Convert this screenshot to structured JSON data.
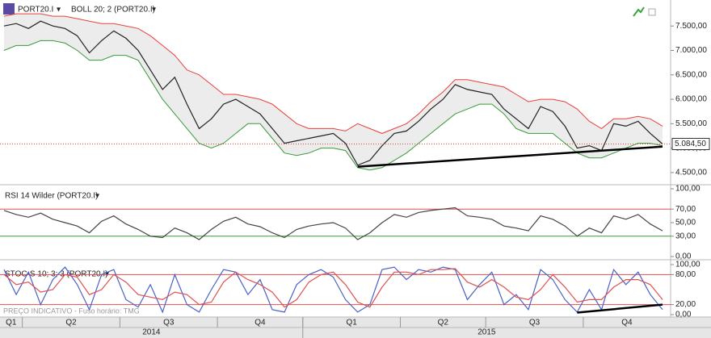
{
  "chart_data": [
    {
      "type": "line",
      "title": "PORT20.I",
      "indicator": "BOLL 20; 2 (PORT20.I)",
      "color": "#222222",
      "values": [
        7500,
        7550,
        7450,
        7600,
        7500,
        7450,
        7300,
        6950,
        7200,
        7400,
        7250,
        7000,
        6600,
        6200,
        6450,
        5900,
        5400,
        5600,
        5900,
        6000,
        5850,
        5700,
        5400,
        5100,
        5150,
        5200,
        5250,
        5300,
        5100,
        4650,
        4750,
        5050,
        5300,
        5350,
        5550,
        5800,
        6000,
        6300,
        6200,
        6150,
        6100,
        5800,
        5600,
        5400,
        5850,
        5750,
        5450,
        5000,
        5050,
        4950,
        5500,
        5450,
        5550,
        5300,
        5084.5
      ],
      "bands": {
        "color_upper": "#e8413c",
        "color_lower": "#3a9a3a",
        "fill": "#ececec",
        "upper": [
          7700,
          7750,
          7750,
          7750,
          7700,
          7700,
          7650,
          7600,
          7550,
          7550,
          7500,
          7450,
          7300,
          7100,
          6900,
          6600,
          6500,
          6300,
          6100,
          6100,
          6050,
          6000,
          5900,
          5700,
          5500,
          5400,
          5400,
          5400,
          5350,
          5500,
          5400,
          5300,
          5400,
          5500,
          5700,
          5950,
          6150,
          6400,
          6400,
          6350,
          6300,
          6250,
          6100,
          5950,
          6000,
          6000,
          5950,
          5800,
          5550,
          5400,
          5600,
          5600,
          5650,
          5600,
          5450
        ],
        "lower": [
          7000,
          7100,
          7100,
          7200,
          7200,
          7150,
          7000,
          6800,
          6800,
          6900,
          6900,
          6800,
          6400,
          6000,
          5700,
          5400,
          5100,
          5000,
          5100,
          5300,
          5500,
          5500,
          5200,
          4900,
          4850,
          4900,
          5000,
          5000,
          4950,
          4600,
          4550,
          4600,
          4750,
          4900,
          5100,
          5300,
          5500,
          5700,
          5800,
          5900,
          5900,
          5700,
          5400,
          5300,
          5300,
          5300,
          5100,
          4900,
          4800,
          4800,
          4900,
          5000,
          5100,
          5100,
          5050
        ]
      },
      "last_label": {
        "value": 5084.5,
        "label": "5.084,50",
        "color": "#e8413c"
      },
      "trendline": {
        "x": [
          29,
          54
        ],
        "values": [
          4620,
          5030
        ],
        "color": "#000000"
      },
      "ylim": [
        4300,
        7900
      ],
      "yticks": [
        {
          "value": 4500,
          "label": "4.500,00"
        },
        {
          "value": 5000,
          "label": "5.000,00"
        },
        {
          "value": 5500,
          "label": "5.500,00"
        },
        {
          "value": 6000,
          "label": "6.000,00"
        },
        {
          "value": 6500,
          "label": "6.500,00"
        },
        {
          "value": 7000,
          "label": "7.000,00"
        },
        {
          "value": 7500,
          "label": "7.500,00"
        }
      ]
    },
    {
      "type": "line",
      "title": "RSI 14 Wilder (PORT20.I)",
      "series": [
        {
          "color": "#444444",
          "values": [
            68,
            62,
            58,
            64,
            55,
            50,
            45,
            35,
            52,
            60,
            48,
            40,
            30,
            28,
            42,
            35,
            25,
            40,
            52,
            58,
            48,
            44,
            35,
            28,
            40,
            45,
            48,
            50,
            42,
            25,
            35,
            50,
            62,
            58,
            65,
            68,
            70,
            72,
            60,
            58,
            55,
            45,
            42,
            38,
            60,
            55,
            45,
            30,
            42,
            35,
            60,
            55,
            62,
            48,
            38
          ]
        }
      ],
      "levels": [
        {
          "value": 70,
          "color": "#e05050"
        },
        {
          "value": 30,
          "color": "#3a9a3a"
        }
      ],
      "ylim": [
        0,
        100
      ],
      "yticks": [
        {
          "value": 0,
          "label": "0,00"
        },
        {
          "value": 30,
          "label": "30,00"
        },
        {
          "value": 50,
          "label": "50,00"
        },
        {
          "value": 70,
          "label": "70,00"
        },
        {
          "value": 100,
          "label": "100,00"
        }
      ]
    },
    {
      "type": "line",
      "title": "STOC-S 10; 3; 3 (PORT20.I)",
      "series": [
        {
          "color": "#4a62c4",
          "values": [
            90,
            40,
            85,
            20,
            70,
            95,
            60,
            10,
            80,
            90,
            30,
            15,
            60,
            5,
            80,
            20,
            5,
            50,
            90,
            85,
            40,
            70,
            10,
            5,
            60,
            80,
            90,
            75,
            30,
            5,
            20,
            90,
            95,
            70,
            90,
            85,
            95,
            90,
            30,
            60,
            85,
            20,
            40,
            10,
            90,
            70,
            30,
            5,
            50,
            10,
            90,
            60,
            85,
            40,
            10
          ]
        },
        {
          "color": "#e05050",
          "values": [
            80,
            60,
            65,
            45,
            50,
            80,
            75,
            40,
            50,
            80,
            65,
            40,
            35,
            30,
            45,
            40,
            20,
            25,
            65,
            85,
            70,
            60,
            45,
            15,
            30,
            65,
            80,
            85,
            60,
            25,
            15,
            55,
            85,
            85,
            80,
            90,
            90,
            92,
            65,
            55,
            70,
            55,
            35,
            30,
            50,
            80,
            55,
            25,
            30,
            30,
            55,
            70,
            70,
            60,
            30
          ]
        }
      ],
      "levels": [
        {
          "value": 80,
          "color": "#e05050"
        },
        {
          "value": 20,
          "color": "#e05050"
        }
      ],
      "trendline": {
        "x": [
          47,
          54
        ],
        "values": [
          4,
          20
        ],
        "color": "#000000"
      },
      "ylim": [
        0,
        100
      ],
      "yticks": [
        {
          "value": 0,
          "label": "0,00"
        },
        {
          "value": 20,
          "label": "20,00"
        },
        {
          "value": 80,
          "label": "80,00"
        },
        {
          "value": 100,
          "label": "100,00"
        }
      ]
    }
  ],
  "footer_note": "PREÇO INDICATIVO - Fuso horário: TMG",
  "quarters": [
    {
      "label": "Q1",
      "start": 0
    },
    {
      "label": "Q2",
      "start": 2
    },
    {
      "label": "Q3",
      "start": 10
    },
    {
      "label": "Q4",
      "start": 18
    },
    {
      "label": "Q1",
      "start": 25
    },
    {
      "label": "Q2",
      "start": 33
    },
    {
      "label": "Q3",
      "start": 40
    },
    {
      "label": "Q4",
      "start": 48
    }
  ],
  "years": [
    {
      "label": "2014",
      "start": 0
    },
    {
      "label": "2015",
      "start": 25
    }
  ]
}
